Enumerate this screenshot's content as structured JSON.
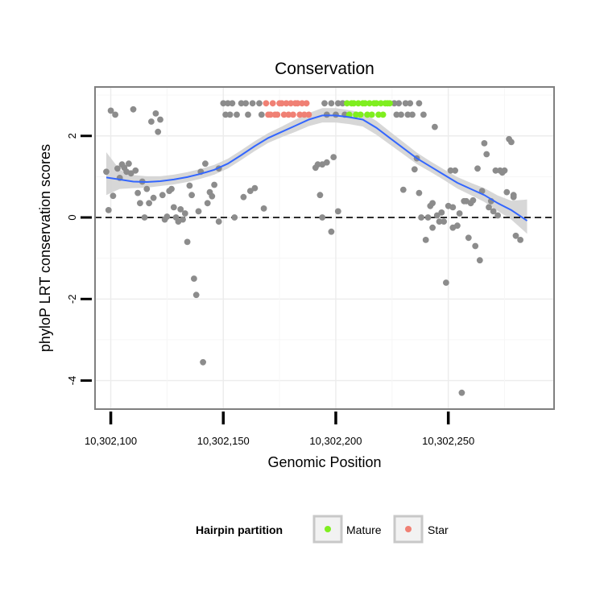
{
  "chart_data": {
    "type": "scatter",
    "title": "Conservation",
    "xlabel": "Genomic Position",
    "ylabel": "phyloP LRT conservation scores",
    "xlim": [
      10302093,
      10302297
    ],
    "ylim": [
      -4.7,
      3.2
    ],
    "x_ticks": [
      10302100,
      10302150,
      10302200,
      10302250
    ],
    "x_tick_labels": [
      "10,302,100",
      "10,302,150",
      "10,302,200",
      "10,302,250"
    ],
    "y_ticks": [
      -4,
      -2,
      0,
      2
    ],
    "y_tick_labels": [
      "-4",
      "-2",
      "0",
      "2"
    ],
    "reference_line": {
      "y": 0,
      "style": "dashed"
    },
    "grid": true,
    "legend": {
      "title": "Hairpin partition",
      "position": "bottom",
      "entries": [
        {
          "label": "Mature",
          "color": "#7FEE1F"
        },
        {
          "label": "Star",
          "color": "#F08074"
        }
      ]
    },
    "colors": {
      "other": "#8C8C8C",
      "mature": "#7FEE1F",
      "star": "#F08074",
      "smooth": "#3366FF",
      "band": "#D3D3D3"
    },
    "series": [
      {
        "name": "Other",
        "color": "#8C8C8C",
        "points": [
          [
            10302098,
            1.12
          ],
          [
            10302099,
            0.18
          ],
          [
            10302100,
            2.62
          ],
          [
            10302101,
            0.53
          ],
          [
            10302102,
            2.52
          ],
          [
            10302103,
            1.2
          ],
          [
            10302104,
            0.97
          ],
          [
            10302105,
            1.3
          ],
          [
            10302106,
            1.22
          ],
          [
            10302107,
            1.12
          ],
          [
            10302108,
            1.32
          ],
          [
            10302109,
            1.08
          ],
          [
            10302110,
            2.65
          ],
          [
            10302111,
            1.15
          ],
          [
            10302112,
            0.6
          ],
          [
            10302113,
            0.35
          ],
          [
            10302114,
            0.88
          ],
          [
            10302115,
            0.0
          ],
          [
            10302116,
            0.7
          ],
          [
            10302117,
            0.35
          ],
          [
            10302118,
            2.35
          ],
          [
            10302119,
            0.48
          ],
          [
            10302120,
            2.55
          ],
          [
            10302121,
            2.1
          ],
          [
            10302122,
            2.4
          ],
          [
            10302123,
            0.55
          ],
          [
            10302124,
            -0.05
          ],
          [
            10302125,
            0.02
          ],
          [
            10302126,
            0.65
          ],
          [
            10302127,
            0.7
          ],
          [
            10302128,
            0.25
          ],
          [
            10302129,
            0.0
          ],
          [
            10302130,
            -0.1
          ],
          [
            10302131,
            0.2
          ],
          [
            10302132,
            -0.05
          ],
          [
            10302133,
            0.1
          ],
          [
            10302134,
            -0.6
          ],
          [
            10302135,
            0.78
          ],
          [
            10302136,
            0.55
          ],
          [
            10302137,
            -1.5
          ],
          [
            10302138,
            -1.9
          ],
          [
            10302139,
            0.15
          ],
          [
            10302140,
            1.12
          ],
          [
            10302141,
            -3.55
          ],
          [
            10302142,
            1.32
          ],
          [
            10302143,
            0.35
          ],
          [
            10302144,
            0.62
          ],
          [
            10302145,
            0.52
          ],
          [
            10302146,
            0.8
          ],
          [
            10302148,
            -0.1
          ],
          [
            10302148,
            1.2
          ],
          [
            10302150,
            2.8
          ],
          [
            10302151,
            2.52
          ],
          [
            10302152,
            2.8
          ],
          [
            10302153,
            2.52
          ],
          [
            10302154,
            2.8
          ],
          [
            10302155,
            0.0
          ],
          [
            10302156,
            2.52
          ],
          [
            10302158,
            2.8
          ],
          [
            10302159,
            0.5
          ],
          [
            10302160,
            2.8
          ],
          [
            10302161,
            2.52
          ],
          [
            10302162,
            0.65
          ],
          [
            10302163,
            2.8
          ],
          [
            10302164,
            0.72
          ],
          [
            10302166,
            2.8
          ],
          [
            10302167,
            2.52
          ],
          [
            10302168,
            0.22
          ],
          [
            10302191,
            1.22
          ],
          [
            10302192,
            1.3
          ],
          [
            10302193,
            0.55
          ],
          [
            10302194,
            1.3
          ],
          [
            10302194,
            0.0
          ],
          [
            10302195,
            2.8
          ],
          [
            10302196,
            2.52
          ],
          [
            10302196,
            1.35
          ],
          [
            10302198,
            2.8
          ],
          [
            10302198,
            -0.35
          ],
          [
            10302199,
            1.48
          ],
          [
            10302200,
            2.52
          ],
          [
            10302201,
            2.8
          ],
          [
            10302201,
            0.15
          ],
          [
            10302203,
            2.8
          ],
          [
            10302204,
            2.52
          ],
          [
            10302226,
            2.8
          ],
          [
            10302227,
            2.52
          ],
          [
            10302228,
            2.8
          ],
          [
            10302229,
            2.52
          ],
          [
            10302230,
            0.68
          ],
          [
            10302231,
            2.8
          ],
          [
            10302232,
            2.52
          ],
          [
            10302233,
            2.8
          ],
          [
            10302234,
            2.52
          ],
          [
            10302235,
            1.18
          ],
          [
            10302236,
            1.45
          ],
          [
            10302237,
            2.8
          ],
          [
            10302237,
            0.6
          ],
          [
            10302238,
            0.0
          ],
          [
            10302239,
            2.52
          ],
          [
            10302240,
            -0.55
          ],
          [
            10302241,
            0.0
          ],
          [
            10302242,
            0.28
          ],
          [
            10302243,
            0.35
          ],
          [
            10302243,
            -0.25
          ],
          [
            10302244,
            2.22
          ],
          [
            10302245,
            0.05
          ],
          [
            10302246,
            -0.1
          ],
          [
            10302247,
            0.12
          ],
          [
            10302248,
            -0.1
          ],
          [
            10302249,
            -1.6
          ],
          [
            10302250,
            0.28
          ],
          [
            10302251,
            1.15
          ],
          [
            10302252,
            0.25
          ],
          [
            10302252,
            -0.25
          ],
          [
            10302253,
            1.15
          ],
          [
            10302254,
            -0.2
          ],
          [
            10302255,
            0.1
          ],
          [
            10302256,
            -4.3
          ],
          [
            10302257,
            0.4
          ],
          [
            10302258,
            0.4
          ],
          [
            10302259,
            -0.5
          ],
          [
            10302260,
            0.35
          ],
          [
            10302261,
            0.42
          ],
          [
            10302262,
            -0.7
          ],
          [
            10302263,
            1.2
          ],
          [
            10302264,
            -1.05
          ],
          [
            10302265,
            0.65
          ],
          [
            10302266,
            1.82
          ],
          [
            10302267,
            1.55
          ],
          [
            10302268,
            0.25
          ],
          [
            10302269,
            0.4
          ],
          [
            10302270,
            0.15
          ],
          [
            10302271,
            1.15
          ],
          [
            10302272,
            0.05
          ],
          [
            10302273,
            1.15
          ],
          [
            10302274,
            1.1
          ],
          [
            10302275,
            1.15
          ],
          [
            10302276,
            0.62
          ],
          [
            10302277,
            1.92
          ],
          [
            10302278,
            1.85
          ],
          [
            10302279,
            0.55
          ],
          [
            10302279,
            0.5
          ],
          [
            10302280,
            -0.45
          ],
          [
            10302282,
            -0.55
          ]
        ]
      },
      {
        "name": "Star",
        "color": "#F08074",
        "points": [
          [
            10302169,
            2.8
          ],
          [
            10302170,
            2.52
          ],
          [
            10302171,
            2.52
          ],
          [
            10302172,
            2.8
          ],
          [
            10302173,
            2.52
          ],
          [
            10302174,
            2.52
          ],
          [
            10302175,
            2.8
          ],
          [
            10302176,
            2.8
          ],
          [
            10302177,
            2.52
          ],
          [
            10302178,
            2.8
          ],
          [
            10302179,
            2.52
          ],
          [
            10302180,
            2.8
          ],
          [
            10302181,
            2.52
          ],
          [
            10302182,
            2.8
          ],
          [
            10302183,
            2.8
          ],
          [
            10302184,
            2.52
          ],
          [
            10302185,
            2.8
          ],
          [
            10302186,
            2.52
          ],
          [
            10302187,
            2.8
          ],
          [
            10302188,
            2.52
          ]
        ]
      },
      {
        "name": "Mature",
        "color": "#7FEE1F",
        "points": [
          [
            10302205,
            2.8
          ],
          [
            10302206,
            2.52
          ],
          [
            10302207,
            2.8
          ],
          [
            10302208,
            2.8
          ],
          [
            10302209,
            2.52
          ],
          [
            10302210,
            2.8
          ],
          [
            10302211,
            2.52
          ],
          [
            10302212,
            2.8
          ],
          [
            10302213,
            2.8
          ],
          [
            10302214,
            2.52
          ],
          [
            10302215,
            2.8
          ],
          [
            10302216,
            2.52
          ],
          [
            10302217,
            2.8
          ],
          [
            10302218,
            2.8
          ],
          [
            10302219,
            2.52
          ],
          [
            10302220,
            2.8
          ],
          [
            10302221,
            2.52
          ],
          [
            10302222,
            2.8
          ],
          [
            10302223,
            2.8
          ],
          [
            10302224,
            2.8
          ]
        ]
      }
    ],
    "smooth": {
      "x": [
        10302098,
        10302104,
        10302110,
        10302116,
        10302122,
        10302128,
        10302134,
        10302140,
        10302146,
        10302152,
        10302158,
        10302164,
        10302170,
        10302176,
        10302182,
        10302188,
        10302194,
        10302200,
        10302206,
        10302212,
        10302218,
        10302224,
        10302230,
        10302236,
        10302242,
        10302248,
        10302254,
        10302260,
        10302266,
        10302272,
        10302278,
        10302285
      ],
      "y": [
        0.98,
        0.93,
        0.88,
        0.87,
        0.89,
        0.93,
        0.99,
        1.07,
        1.17,
        1.32,
        1.53,
        1.75,
        1.95,
        2.1,
        2.25,
        2.4,
        2.5,
        2.5,
        2.46,
        2.4,
        2.2,
        1.95,
        1.7,
        1.45,
        1.25,
        1.05,
        0.85,
        0.7,
        0.55,
        0.35,
        0.18,
        -0.08
      ],
      "lower": [
        0.55,
        0.7,
        0.72,
        0.73,
        0.77,
        0.81,
        0.87,
        0.95,
        1.05,
        1.2,
        1.41,
        1.63,
        1.83,
        1.97,
        2.1,
        2.24,
        2.33,
        2.33,
        2.29,
        2.23,
        2.03,
        1.79,
        1.55,
        1.31,
        1.12,
        0.92,
        0.71,
        0.55,
        0.38,
        0.16,
        -0.05,
        -0.4
      ],
      "upper": [
        1.6,
        1.17,
        1.04,
        1.01,
        1.01,
        1.05,
        1.11,
        1.19,
        1.29,
        1.44,
        1.65,
        1.87,
        2.07,
        2.23,
        2.4,
        2.56,
        2.68,
        2.68,
        2.63,
        2.57,
        2.37,
        2.11,
        1.85,
        1.59,
        1.38,
        1.18,
        0.99,
        0.85,
        0.72,
        0.54,
        0.41,
        0.44
      ]
    }
  }
}
